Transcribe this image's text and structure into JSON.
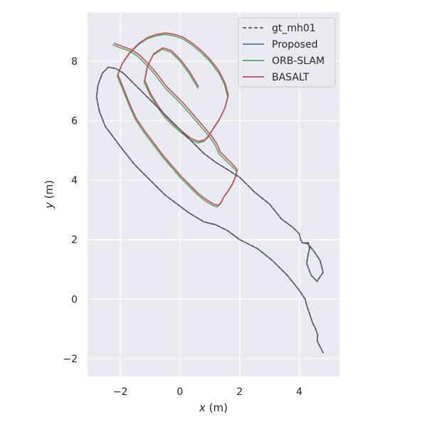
{
  "chart_data": {
    "type": "line",
    "xlabel_var": "x",
    "xlabel_unit": " (m)",
    "ylabel_var": "y",
    "ylabel_unit": " (m)",
    "xlim": [
      -3.1,
      5.35
    ],
    "ylim": [
      -2.6,
      9.65
    ],
    "xticks": [
      -2,
      0,
      2,
      4
    ],
    "yticks": [
      -2,
      0,
      2,
      4,
      6,
      8
    ],
    "grid": true,
    "legend_position": "upper right",
    "series": [
      {
        "name": "gt_mh01",
        "color": "#555555",
        "dashed": true,
        "x": [
          4.8,
          4.7,
          4.6,
          4.62,
          4.55,
          4.45,
          4.35,
          4.25,
          4.2,
          4.0,
          3.6,
          3.1,
          2.6,
          2.0,
          1.6,
          1.2,
          0.8,
          0.3,
          -0.1,
          -0.5,
          -0.8,
          -1.1,
          -1.5,
          -1.9,
          -2.2,
          -2.5,
          -2.7,
          -2.8,
          -2.75,
          -2.6,
          -2.4,
          -2.15,
          -1.9,
          -1.6,
          -1.2,
          -0.8,
          -0.4,
          0.0,
          0.4,
          0.8,
          1.2,
          1.6,
          2.0,
          2.5,
          3.0,
          3.4,
          3.8,
          4.0,
          4.05,
          4.1,
          4.2,
          4.3,
          4.35,
          4.3,
          4.25,
          4.4,
          4.6,
          4.8,
          4.7,
          4.5,
          4.3,
          4.2
        ],
        "y": [
          -1.8,
          -1.6,
          -1.4,
          -1.2,
          -1.0,
          -0.8,
          -0.5,
          -0.2,
          0.0,
          0.3,
          0.8,
          1.3,
          1.7,
          2.0,
          2.3,
          2.5,
          2.6,
          2.9,
          3.2,
          3.5,
          3.8,
          4.1,
          4.5,
          5.0,
          5.4,
          5.8,
          6.3,
          6.8,
          7.2,
          7.6,
          7.8,
          7.75,
          7.6,
          7.3,
          6.9,
          6.5,
          6.1,
          5.7,
          5.3,
          4.9,
          4.6,
          4.35,
          4.1,
          3.6,
          3.2,
          2.7,
          2.4,
          2.2,
          2.0,
          1.9,
          1.88,
          1.9,
          1.7,
          1.5,
          1.2,
          0.8,
          0.6,
          0.9,
          1.3,
          1.6,
          1.85,
          1.9
        ]
      },
      {
        "name": "Proposed",
        "color": "#4c72b0",
        "dashed": false,
        "x": [
          4.8,
          4.7,
          4.6,
          4.62,
          4.55,
          4.45,
          4.35,
          4.25,
          4.2,
          4.0,
          3.6,
          3.1,
          2.6,
          2.0,
          1.6,
          1.2,
          0.8,
          0.3,
          -0.1,
          -0.5,
          -0.8,
          -1.1,
          -1.5,
          -1.9,
          -2.2,
          -2.5,
          -2.7,
          -2.8,
          -2.75,
          -2.6,
          -2.4,
          -2.15,
          -1.9,
          -1.6,
          -1.2,
          -0.8,
          -0.4,
          0.0,
          0.4,
          0.8,
          1.2,
          1.6,
          2.0,
          2.5,
          3.0,
          3.4,
          3.8,
          4.0,
          4.05,
          4.1,
          4.2,
          4.3,
          4.35,
          4.3,
          4.25,
          4.4,
          4.6,
          4.8,
          4.7,
          4.5,
          4.3,
          4.2
        ],
        "y": [
          -1.8,
          -1.6,
          -1.4,
          -1.2,
          -1.0,
          -0.8,
          -0.5,
          -0.2,
          0.0,
          0.3,
          0.8,
          1.3,
          1.7,
          2.0,
          2.3,
          2.5,
          2.6,
          2.9,
          3.2,
          3.5,
          3.8,
          4.1,
          4.5,
          5.0,
          5.4,
          5.8,
          6.3,
          6.8,
          7.2,
          7.6,
          7.8,
          7.75,
          7.6,
          7.3,
          6.9,
          6.5,
          6.1,
          5.7,
          5.3,
          4.9,
          4.6,
          4.35,
          4.1,
          3.6,
          3.2,
          2.7,
          2.4,
          2.2,
          2.0,
          1.9,
          1.88,
          1.9,
          1.7,
          1.5,
          1.2,
          0.8,
          0.6,
          0.9,
          1.3,
          1.6,
          1.85,
          1.9
        ]
      },
      {
        "name": "ORB-SLAM",
        "color": "#55a868",
        "dashed": false,
        "x": [
          -2.25,
          -2.0,
          -1.7,
          -1.4,
          -1.1,
          -0.8,
          -0.5,
          -0.2,
          0.1,
          0.4,
          0.7,
          1.0,
          1.2,
          1.3,
          1.5,
          1.7,
          1.9,
          1.85,
          1.75,
          1.6,
          1.45,
          1.35,
          1.25,
          1.1,
          0.85,
          0.6,
          0.3,
          0.0,
          -0.3,
          -0.6,
          -0.9,
          -1.2,
          -1.5,
          -1.7,
          -1.9,
          -2.1,
          -1.95,
          -1.7,
          -1.4,
          -1.1,
          -0.8,
          -0.5,
          -0.2,
          0.1,
          0.4,
          0.7,
          1.0,
          1.3,
          1.5,
          1.6,
          1.5,
          1.3,
          1.1,
          0.95,
          0.8,
          0.6,
          0.35,
          0.1,
          -0.2,
          -0.5,
          -0.75,
          -1.0,
          -1.2,
          -1.1,
          -0.9,
          -0.6,
          -0.3,
          0.0,
          0.3,
          0.6
        ],
        "y": [
          8.55,
          8.45,
          8.35,
          8.15,
          7.85,
          7.5,
          7.1,
          6.8,
          6.5,
          6.15,
          5.8,
          5.45,
          5.15,
          4.9,
          4.7,
          4.5,
          4.3,
          4.1,
          3.85,
          3.6,
          3.4,
          3.2,
          3.1,
          3.15,
          3.3,
          3.5,
          3.8,
          4.1,
          4.45,
          4.8,
          5.2,
          5.6,
          6.05,
          6.5,
          7.0,
          7.5,
          7.9,
          8.25,
          8.55,
          8.75,
          8.85,
          8.9,
          8.85,
          8.75,
          8.55,
          8.3,
          8.0,
          7.6,
          7.2,
          6.8,
          6.4,
          6.0,
          5.7,
          5.45,
          5.3,
          5.25,
          5.35,
          5.55,
          5.8,
          6.1,
          6.45,
          6.85,
          7.3,
          7.8,
          8.2,
          8.4,
          8.3,
          8.0,
          7.6,
          7.1
        ]
      },
      {
        "name": "BASALT",
        "color": "#c44e52",
        "dashed": false,
        "x": [
          -2.2,
          -1.95,
          -1.65,
          -1.35,
          -1.05,
          -0.75,
          -0.45,
          -0.15,
          0.15,
          0.45,
          0.75,
          1.05,
          1.25,
          1.35,
          1.55,
          1.75,
          1.92,
          1.88,
          1.78,
          1.62,
          1.48,
          1.38,
          1.28,
          1.12,
          0.88,
          0.62,
          0.32,
          0.02,
          -0.28,
          -0.58,
          -0.88,
          -1.18,
          -1.48,
          -1.68,
          -1.88,
          -2.08,
          -1.92,
          -1.68,
          -1.38,
          -1.08,
          -0.78,
          -0.48,
          -0.18,
          0.12,
          0.42,
          0.72,
          1.02,
          1.32,
          1.52,
          1.62,
          1.52,
          1.32,
          1.12,
          0.97,
          0.82,
          0.62,
          0.37,
          0.12,
          -0.18,
          -0.48,
          -0.73,
          -0.98,
          -1.18,
          -1.08,
          -0.88,
          -0.58,
          -0.28,
          0.02,
          0.32,
          0.62
        ],
        "y": [
          8.6,
          8.5,
          8.4,
          8.2,
          7.9,
          7.55,
          7.15,
          6.85,
          6.55,
          6.2,
          5.85,
          5.5,
          5.2,
          4.95,
          4.75,
          4.55,
          4.35,
          4.15,
          3.9,
          3.65,
          3.45,
          3.25,
          3.15,
          3.2,
          3.35,
          3.55,
          3.85,
          4.15,
          4.5,
          4.85,
          5.25,
          5.65,
          6.1,
          6.55,
          7.05,
          7.55,
          7.95,
          8.3,
          8.6,
          8.8,
          8.9,
          8.95,
          8.9,
          8.8,
          8.6,
          8.35,
          8.05,
          7.65,
          7.25,
          6.85,
          6.45,
          6.05,
          5.75,
          5.5,
          5.35,
          5.3,
          5.4,
          5.6,
          5.85,
          6.15,
          6.5,
          6.9,
          7.35,
          7.85,
          8.25,
          8.45,
          8.35,
          8.05,
          7.65,
          7.15
        ]
      }
    ]
  }
}
